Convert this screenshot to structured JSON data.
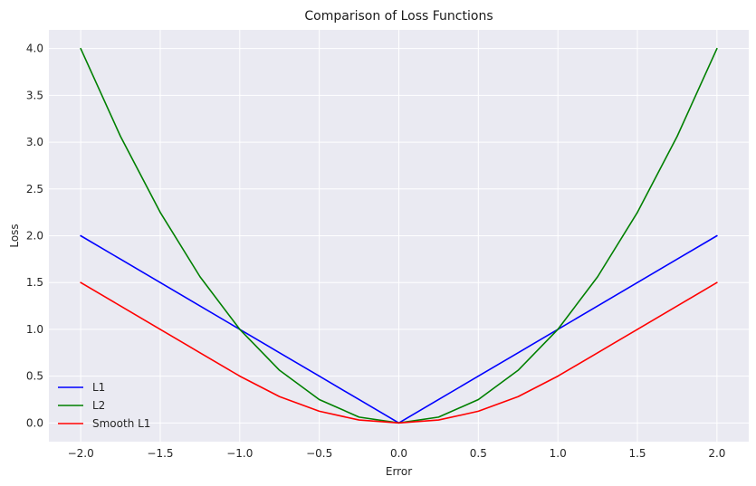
{
  "chart_data": {
    "type": "line",
    "title": "Comparison of Loss Functions",
    "xlabel": "Error",
    "ylabel": "Loss",
    "xlim": [
      -2.2,
      2.2
    ],
    "ylim": [
      -0.2,
      4.2
    ],
    "xticks": [
      -2.0,
      -1.5,
      -1.0,
      -0.5,
      0.0,
      0.5,
      1.0,
      1.5,
      2.0
    ],
    "xtick_labels": [
      "−2.0",
      "−1.5",
      "−1.0",
      "−0.5",
      "0.0",
      "0.5",
      "1.0",
      "1.5",
      "2.0"
    ],
    "yticks": [
      0.0,
      0.5,
      1.0,
      1.5,
      2.0,
      2.5,
      3.0,
      3.5,
      4.0
    ],
    "ytick_labels": [
      "0.0",
      "0.5",
      "1.0",
      "1.5",
      "2.0",
      "2.5",
      "3.0",
      "3.5",
      "4.0"
    ],
    "grid": true,
    "legend_position": "lower-left",
    "background_color": "#eaeaf2",
    "grid_color": "#ffffff",
    "x": [
      -2.0,
      -1.75,
      -1.5,
      -1.25,
      -1.0,
      -0.75,
      -0.5,
      -0.25,
      0.0,
      0.25,
      0.5,
      0.75,
      1.0,
      1.25,
      1.5,
      1.75,
      2.0
    ],
    "series": [
      {
        "name": "L1",
        "color": "#0000ff",
        "values": [
          2.0,
          1.75,
          1.5,
          1.25,
          1.0,
          0.75,
          0.5,
          0.25,
          0.0,
          0.25,
          0.5,
          0.75,
          1.0,
          1.25,
          1.5,
          1.75,
          2.0
        ]
      },
      {
        "name": "L2",
        "color": "#008000",
        "values": [
          4.0,
          3.0625,
          2.25,
          1.5625,
          1.0,
          0.5625,
          0.25,
          0.0625,
          0.0,
          0.0625,
          0.25,
          0.5625,
          1.0,
          1.5625,
          2.25,
          3.0625,
          4.0
        ]
      },
      {
        "name": "Smooth L1",
        "color": "#ff0000",
        "values": [
          1.5,
          1.25,
          1.0,
          0.75,
          0.5,
          0.28125,
          0.125,
          0.03125,
          0.0,
          0.03125,
          0.125,
          0.28125,
          0.5,
          0.75,
          1.0,
          1.25,
          1.5
        ]
      }
    ]
  }
}
